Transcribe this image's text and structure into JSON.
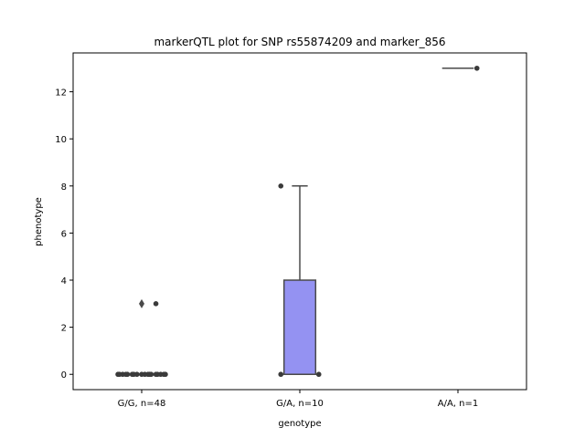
{
  "chart_data": {
    "type": "box",
    "title": "markerQTL plot for SNP rs55874209 and marker_856",
    "xlabel": "genotype",
    "ylabel": "phenotype",
    "ylim": [
      -0.65,
      13.65
    ],
    "yticks": [
      0,
      2,
      4,
      6,
      8,
      10,
      12
    ],
    "grid": false,
    "categories": [
      "G/G, n=48",
      "G/A, n=10",
      "A/A, n=1"
    ],
    "colors": {
      "box_fill": "#9492f2",
      "line": "#4a4a4a",
      "points": "#3a3a3a"
    },
    "boxes": [
      {
        "category": "G/G, n=48",
        "q1": 0,
        "median": 0,
        "q3": 0,
        "whisker_low": 0,
        "whisker_high": 0,
        "outliers": [
          3
        ]
      },
      {
        "category": "G/A, n=10",
        "q1": 0,
        "median": 0,
        "q3": 4,
        "whisker_low": 0,
        "whisker_high": 8,
        "outliers": []
      },
      {
        "category": "A/A, n=1",
        "q1": 13,
        "median": 13,
        "q3": 13,
        "whisker_low": 13,
        "whisker_high": 13,
        "outliers": []
      }
    ],
    "points": [
      {
        "category": "G/G, n=48",
        "x_offsets": [
          -0.15,
          -0.12,
          -0.09,
          -0.06,
          -0.03,
          0.0,
          0.02,
          0.04,
          0.06,
          0.09,
          0.12,
          0.15,
          -0.14,
          -0.1,
          -0.05,
          0.05,
          0.1,
          0.14
        ],
        "y": [
          0,
          0,
          0,
          0,
          0,
          0,
          0,
          0,
          0,
          0,
          0,
          0,
          0,
          0,
          0,
          0,
          0,
          0
        ]
      },
      {
        "category": "G/G, n=48",
        "x_offsets": [
          0.09
        ],
        "y": [
          3
        ]
      },
      {
        "category": "G/A, n=10",
        "x_offsets": [
          -0.12,
          0.12
        ],
        "y": [
          0,
          0
        ]
      },
      {
        "category": "G/A, n=10",
        "x_offsets": [
          -0.12
        ],
        "y": [
          8
        ]
      },
      {
        "category": "A/A, n=1",
        "x_offsets": [
          0.12
        ],
        "y": [
          13
        ]
      }
    ]
  }
}
